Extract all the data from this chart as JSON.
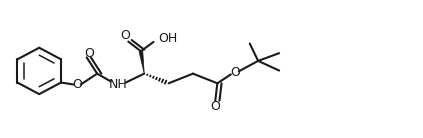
{
  "bg_color": "#ffffff",
  "line_color": "#1a1a1a",
  "line_width": 1.5,
  "font_size": 9,
  "fig_width": 4.23,
  "fig_height": 1.38,
  "dpi": 100,
  "xlim": [
    0,
    100
  ],
  "ylim": [
    0,
    35
  ]
}
